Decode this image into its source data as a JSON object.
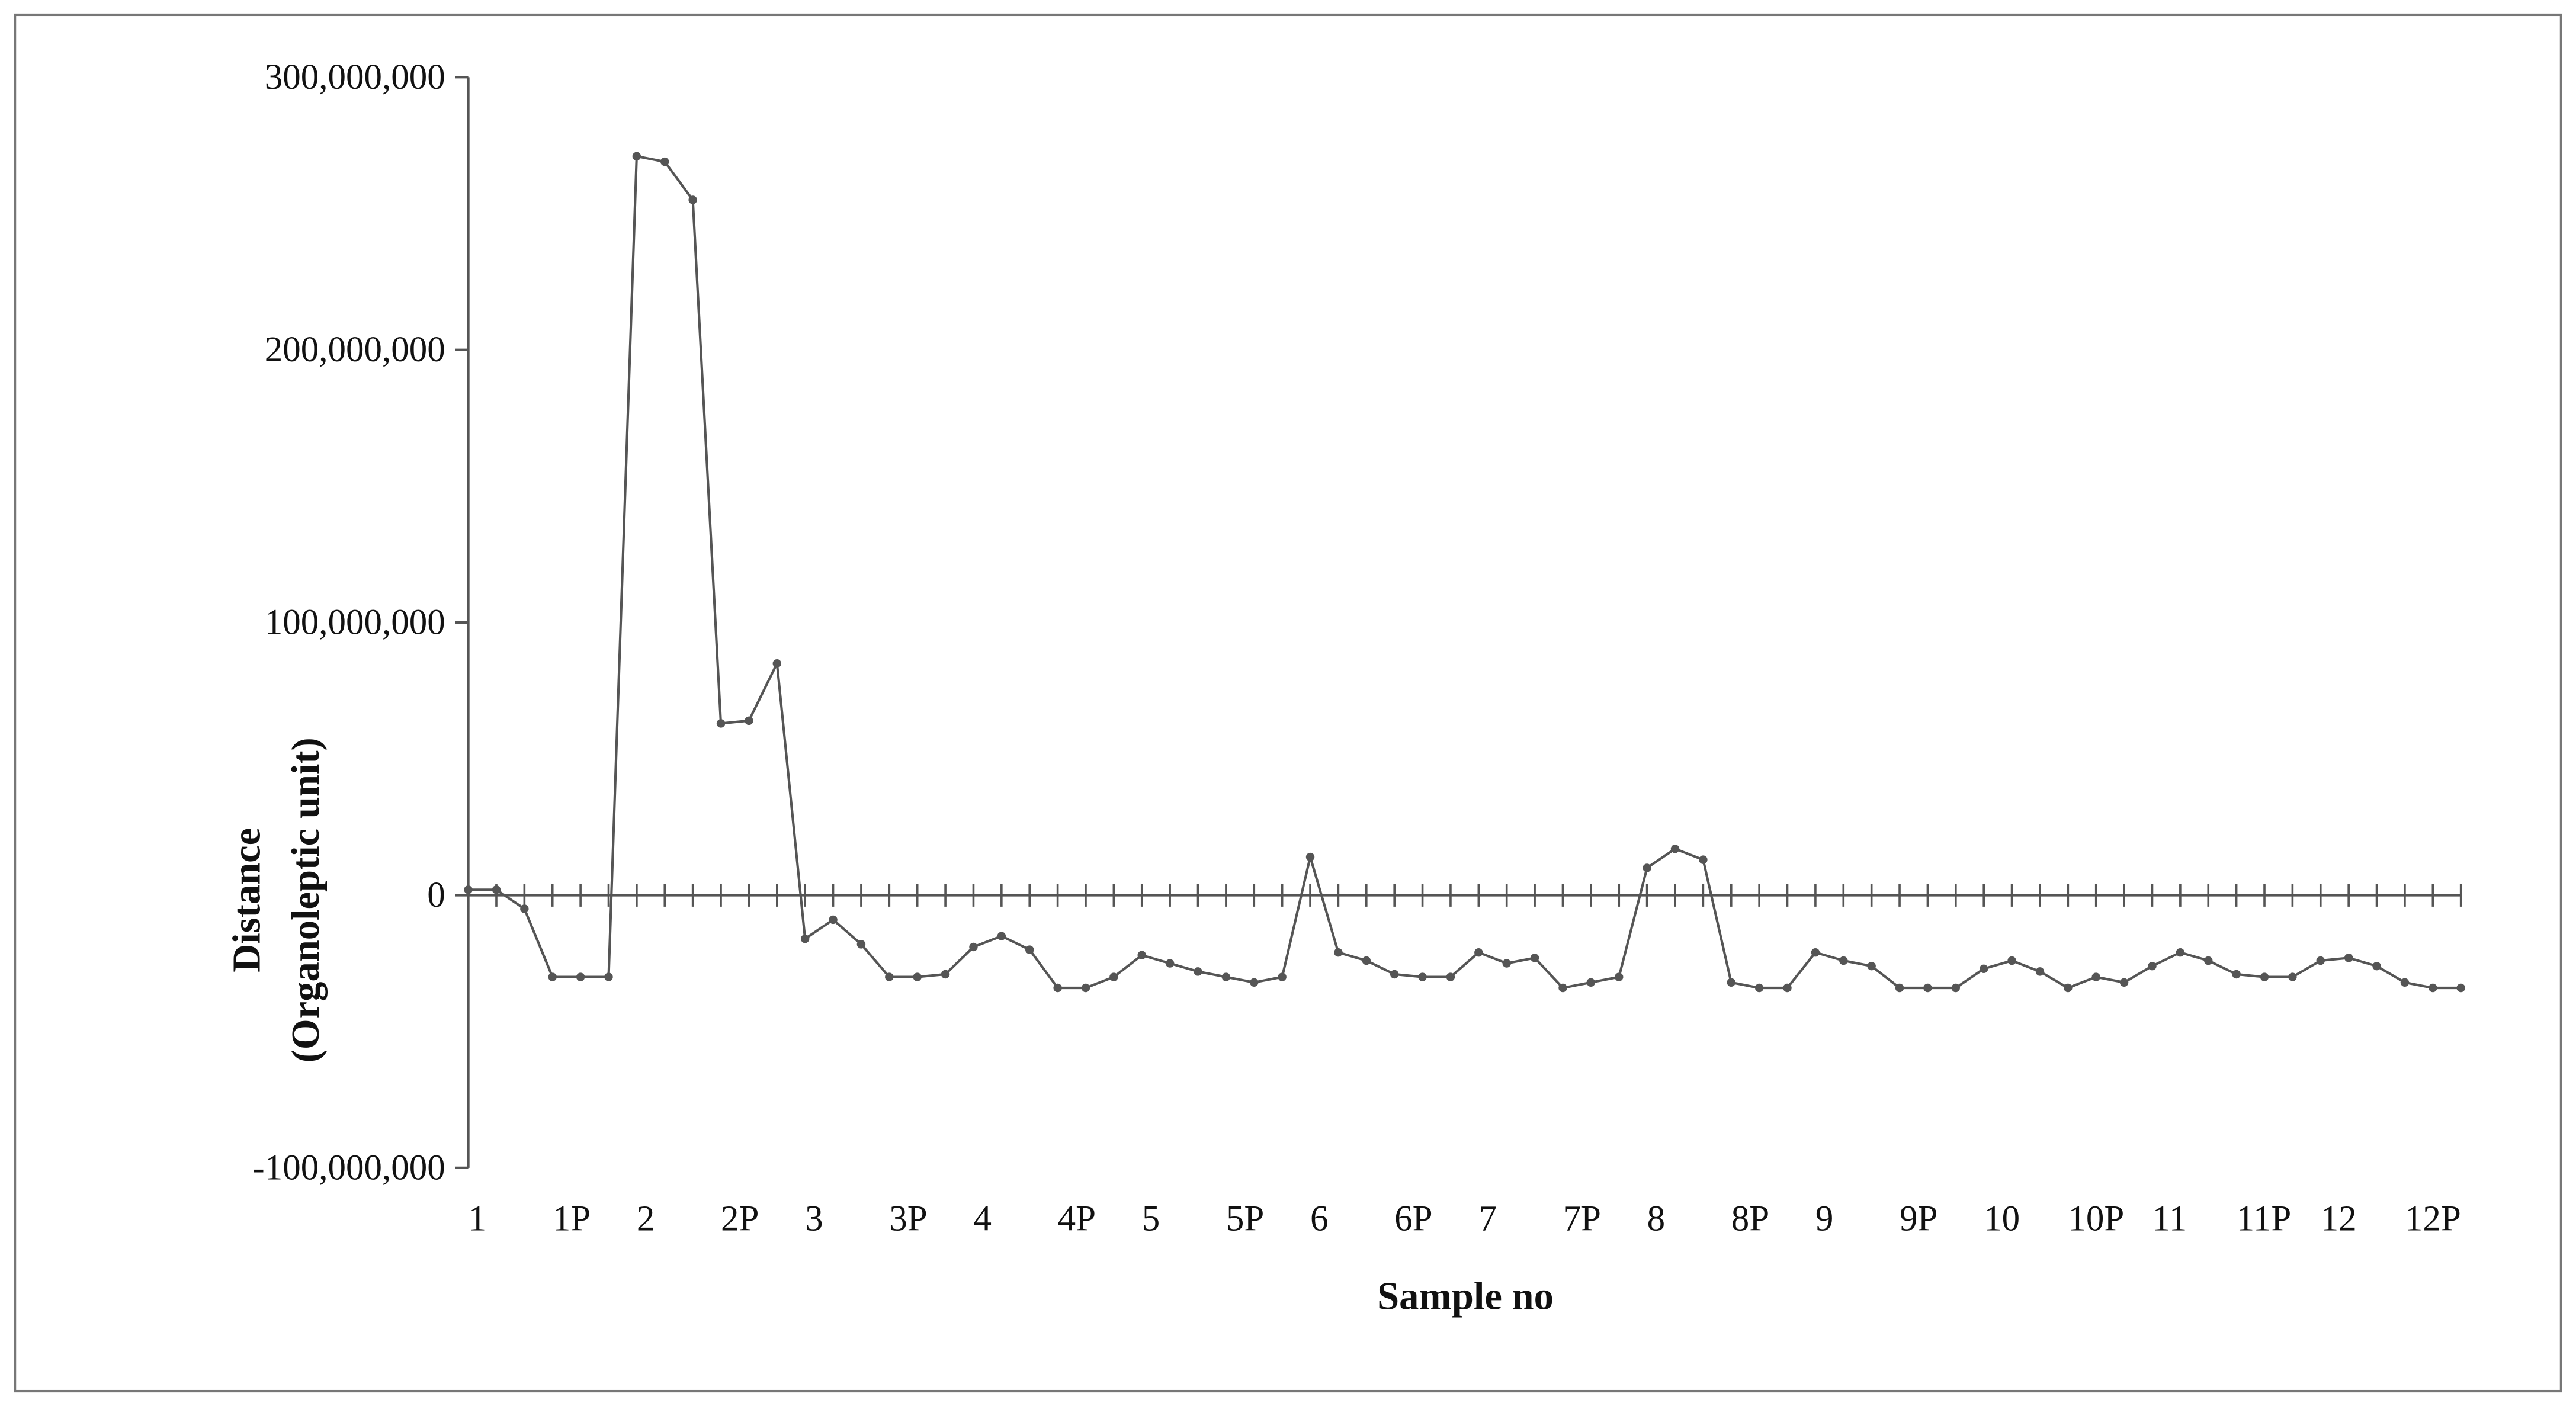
{
  "chart_data": {
    "type": "line",
    "x_label": "Sample no",
    "y_label": [
      "Distance",
      "(Organoleptic unit)"
    ],
    "categories": [
      "1",
      null,
      null,
      "1P",
      null,
      null,
      "2",
      null,
      null,
      "2P",
      null,
      null,
      "3",
      null,
      null,
      "3P",
      null,
      null,
      "4",
      null,
      null,
      "4P",
      null,
      null,
      "5",
      null,
      null,
      "5P",
      null,
      null,
      "6",
      null,
      null,
      "6P",
      null,
      null,
      "7",
      null,
      null,
      "7P",
      null,
      null,
      "8",
      null,
      null,
      "8P",
      null,
      null,
      "9",
      null,
      null,
      "9P",
      null,
      null,
      "10",
      null,
      null,
      "10P",
      null,
      null,
      "11",
      null,
      null,
      "11P",
      null,
      null,
      "12",
      null,
      null,
      "12P",
      null,
      null
    ],
    "series": [
      {
        "name": "Distance",
        "color": "#555555",
        "values": [
          2000000,
          2000000,
          -5000000,
          -30000000,
          -30000000,
          -30000000,
          271000000,
          269000000,
          255000000,
          63000000,
          64000000,
          85000000,
          -16000000,
          -9000000,
          -18000000,
          -30000000,
          -30000000,
          -29000000,
          -19000000,
          -15000000,
          -20000000,
          -34000000,
          -34000000,
          -30000000,
          -22000000,
          -25000000,
          -28000000,
          -30000000,
          -32000000,
          -30000000,
          14000000,
          -21000000,
          -24000000,
          -29000000,
          -30000000,
          -30000000,
          -21000000,
          -25000000,
          -23000000,
          -34000000,
          -32000000,
          -30000000,
          10000000,
          17000000,
          13000000,
          -32000000,
          -34000000,
          -34000000,
          -21000000,
          -24000000,
          -26000000,
          -34000000,
          -34000000,
          -34000000,
          -27000000,
          -24000000,
          -28000000,
          -34000000,
          -30000000,
          -32000000,
          -26000000,
          -21000000,
          -24000000,
          -29000000,
          -30000000,
          -30000000,
          -24000000,
          -23000000,
          -26000000,
          -32000000,
          -34000000,
          -34000000
        ]
      }
    ],
    "ylim": [
      -100000000,
      300000000
    ],
    "yticks": [
      {
        "value": -100000000,
        "label": "-100,000,000"
      },
      0,
      {
        "value": 100000000,
        "label": "100,000,000"
      },
      {
        "value": 200000000,
        "label": "200,000,000"
      },
      {
        "value": 300000000,
        "label": "300,000,000"
      }
    ],
    "grid": false
  }
}
